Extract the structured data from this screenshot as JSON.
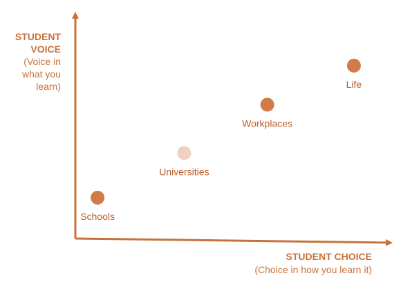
{
  "chart_data": {
    "type": "scatter",
    "title": "",
    "x_axis": {
      "title": "STUDENT CHOICE",
      "subtitle": "(Choice in how you learn it)"
    },
    "y_axis": {
      "title_lines": [
        "STUDENT",
        "VOICE"
      ],
      "subtitle_lines": [
        "(Voice in",
        "what you",
        "learn)"
      ]
    },
    "xlim": [
      0,
      10
    ],
    "ylim": [
      0,
      10
    ],
    "grid": false,
    "points": [
      {
        "label": "Schools",
        "x": 1.4,
        "y": 1.9,
        "color": "#d17c47"
      },
      {
        "label": "Universities",
        "x": 3.9,
        "y": 4.3,
        "color": "#f0d1c0"
      },
      {
        "label": "Workplaces",
        "x": 6.3,
        "y": 6.9,
        "color": "#d17c47"
      },
      {
        "label": "Life",
        "x": 8.8,
        "y": 9.0,
        "color": "#d17c47"
      }
    ]
  },
  "colors": {
    "axis": "#c8713a",
    "label_text": "#b85f28"
  }
}
